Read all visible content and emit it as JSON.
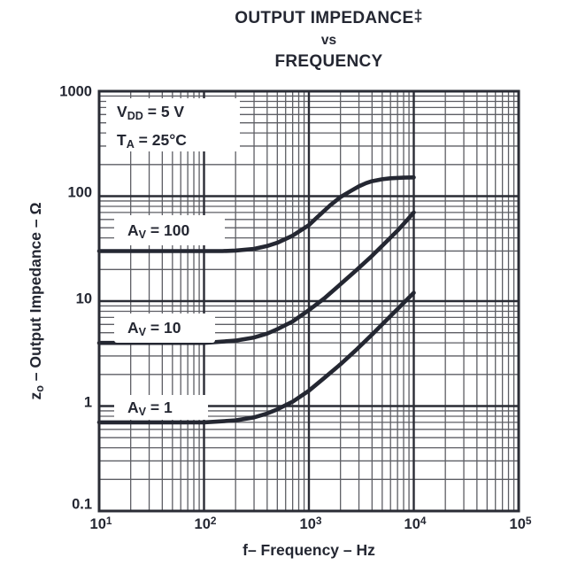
{
  "figure": {
    "title_line1": "OUTPUT IMPEDANCE",
    "title_dagger": "‡",
    "title_line2": "vs",
    "title_line3": "FREQUENCY"
  },
  "conditions": {
    "vdd": {
      "pre": "V",
      "sub": "DD",
      "post": " = 5 V"
    },
    "ta": {
      "pre": "T",
      "sub": "A",
      "post": " = 25°C"
    }
  },
  "curve_labels": [
    {
      "pre": "A",
      "sub": "V",
      "post": " = 100"
    },
    {
      "pre": "A",
      "sub": "V",
      "post": " = 10"
    },
    {
      "pre": "A",
      "sub": "V",
      "post": " = 1"
    }
  ],
  "axes": {
    "x_title": {
      "pre": "f",
      "post": "– Frequency – Hz"
    },
    "y_title": {
      "pre": "z",
      "sub": "o",
      "post": " – Output Impedance – Ω"
    },
    "x_ticks": [
      {
        "base": "10",
        "exp": "1"
      },
      {
        "base": "10",
        "exp": "2"
      },
      {
        "base": "10",
        "exp": "3"
      },
      {
        "base": "10",
        "exp": "4"
      },
      {
        "base": "10",
        "exp": "5"
      }
    ],
    "y_ticks": [
      "1000",
      "100",
      "10",
      "1",
      "0.1"
    ]
  },
  "chart_data": {
    "type": "line",
    "title": "OUTPUT IMPEDANCE vs FREQUENCY",
    "xlabel": "f – Frequency – Hz",
    "ylabel": "zo – Output Impedance – Ω",
    "x_scale": "log",
    "y_scale": "log",
    "xlim": [
      10,
      100000
    ],
    "ylim": [
      0.1,
      1000
    ],
    "grid": "log-log, major and minor gridlines on",
    "legend_position": "inline labels in white boxes",
    "conditions": [
      "VDD = 5 V",
      "TA = 25°C"
    ],
    "series": [
      {
        "name": "AV = 100",
        "points": [
          [
            10,
            30
          ],
          [
            30,
            30
          ],
          [
            100,
            30
          ],
          [
            150,
            30
          ],
          [
            200,
            30.3
          ],
          [
            300,
            31.5
          ],
          [
            400,
            33.5
          ],
          [
            500,
            36
          ],
          [
            700,
            42
          ],
          [
            1000,
            53
          ],
          [
            1200,
            63
          ],
          [
            1600,
            82
          ],
          [
            2000,
            98
          ],
          [
            2500,
            112
          ],
          [
            3000,
            124
          ],
          [
            3500,
            133
          ],
          [
            4000,
            139
          ],
          [
            5000,
            145
          ],
          [
            6000,
            148
          ],
          [
            8000,
            150
          ],
          [
            10000,
            151
          ]
        ]
      },
      {
        "name": "AV = 10",
        "points": [
          [
            10,
            4
          ],
          [
            100,
            4
          ],
          [
            200,
            4.2
          ],
          [
            300,
            4.5
          ],
          [
            400,
            4.9
          ],
          [
            500,
            5.4
          ],
          [
            700,
            6.4
          ],
          [
            1000,
            8.2
          ],
          [
            1400,
            10.6
          ],
          [
            2000,
            14.5
          ],
          [
            2800,
            19.5
          ],
          [
            4000,
            27
          ],
          [
            5500,
            37
          ],
          [
            7000,
            47
          ],
          [
            8500,
            58
          ],
          [
            10000,
            70
          ]
        ]
      },
      {
        "name": "AV = 1",
        "points": [
          [
            10,
            0.7
          ],
          [
            100,
            0.7
          ],
          [
            200,
            0.73
          ],
          [
            300,
            0.78
          ],
          [
            400,
            0.85
          ],
          [
            500,
            0.93
          ],
          [
            700,
            1.1
          ],
          [
            1000,
            1.4
          ],
          [
            1400,
            1.85
          ],
          [
            2000,
            2.5
          ],
          [
            2800,
            3.4
          ],
          [
            4000,
            4.8
          ],
          [
            5500,
            6.6
          ],
          [
            7000,
            8.4
          ],
          [
            8500,
            10.2
          ],
          [
            10000,
            12
          ]
        ]
      }
    ]
  },
  "colors": {
    "ink": "#242732",
    "grid_minor": "#5d5e64",
    "grid_major": "#2a2c35",
    "curve": "#242732",
    "plot_bg": "#ffffff",
    "box_bg": "#ffffff"
  }
}
